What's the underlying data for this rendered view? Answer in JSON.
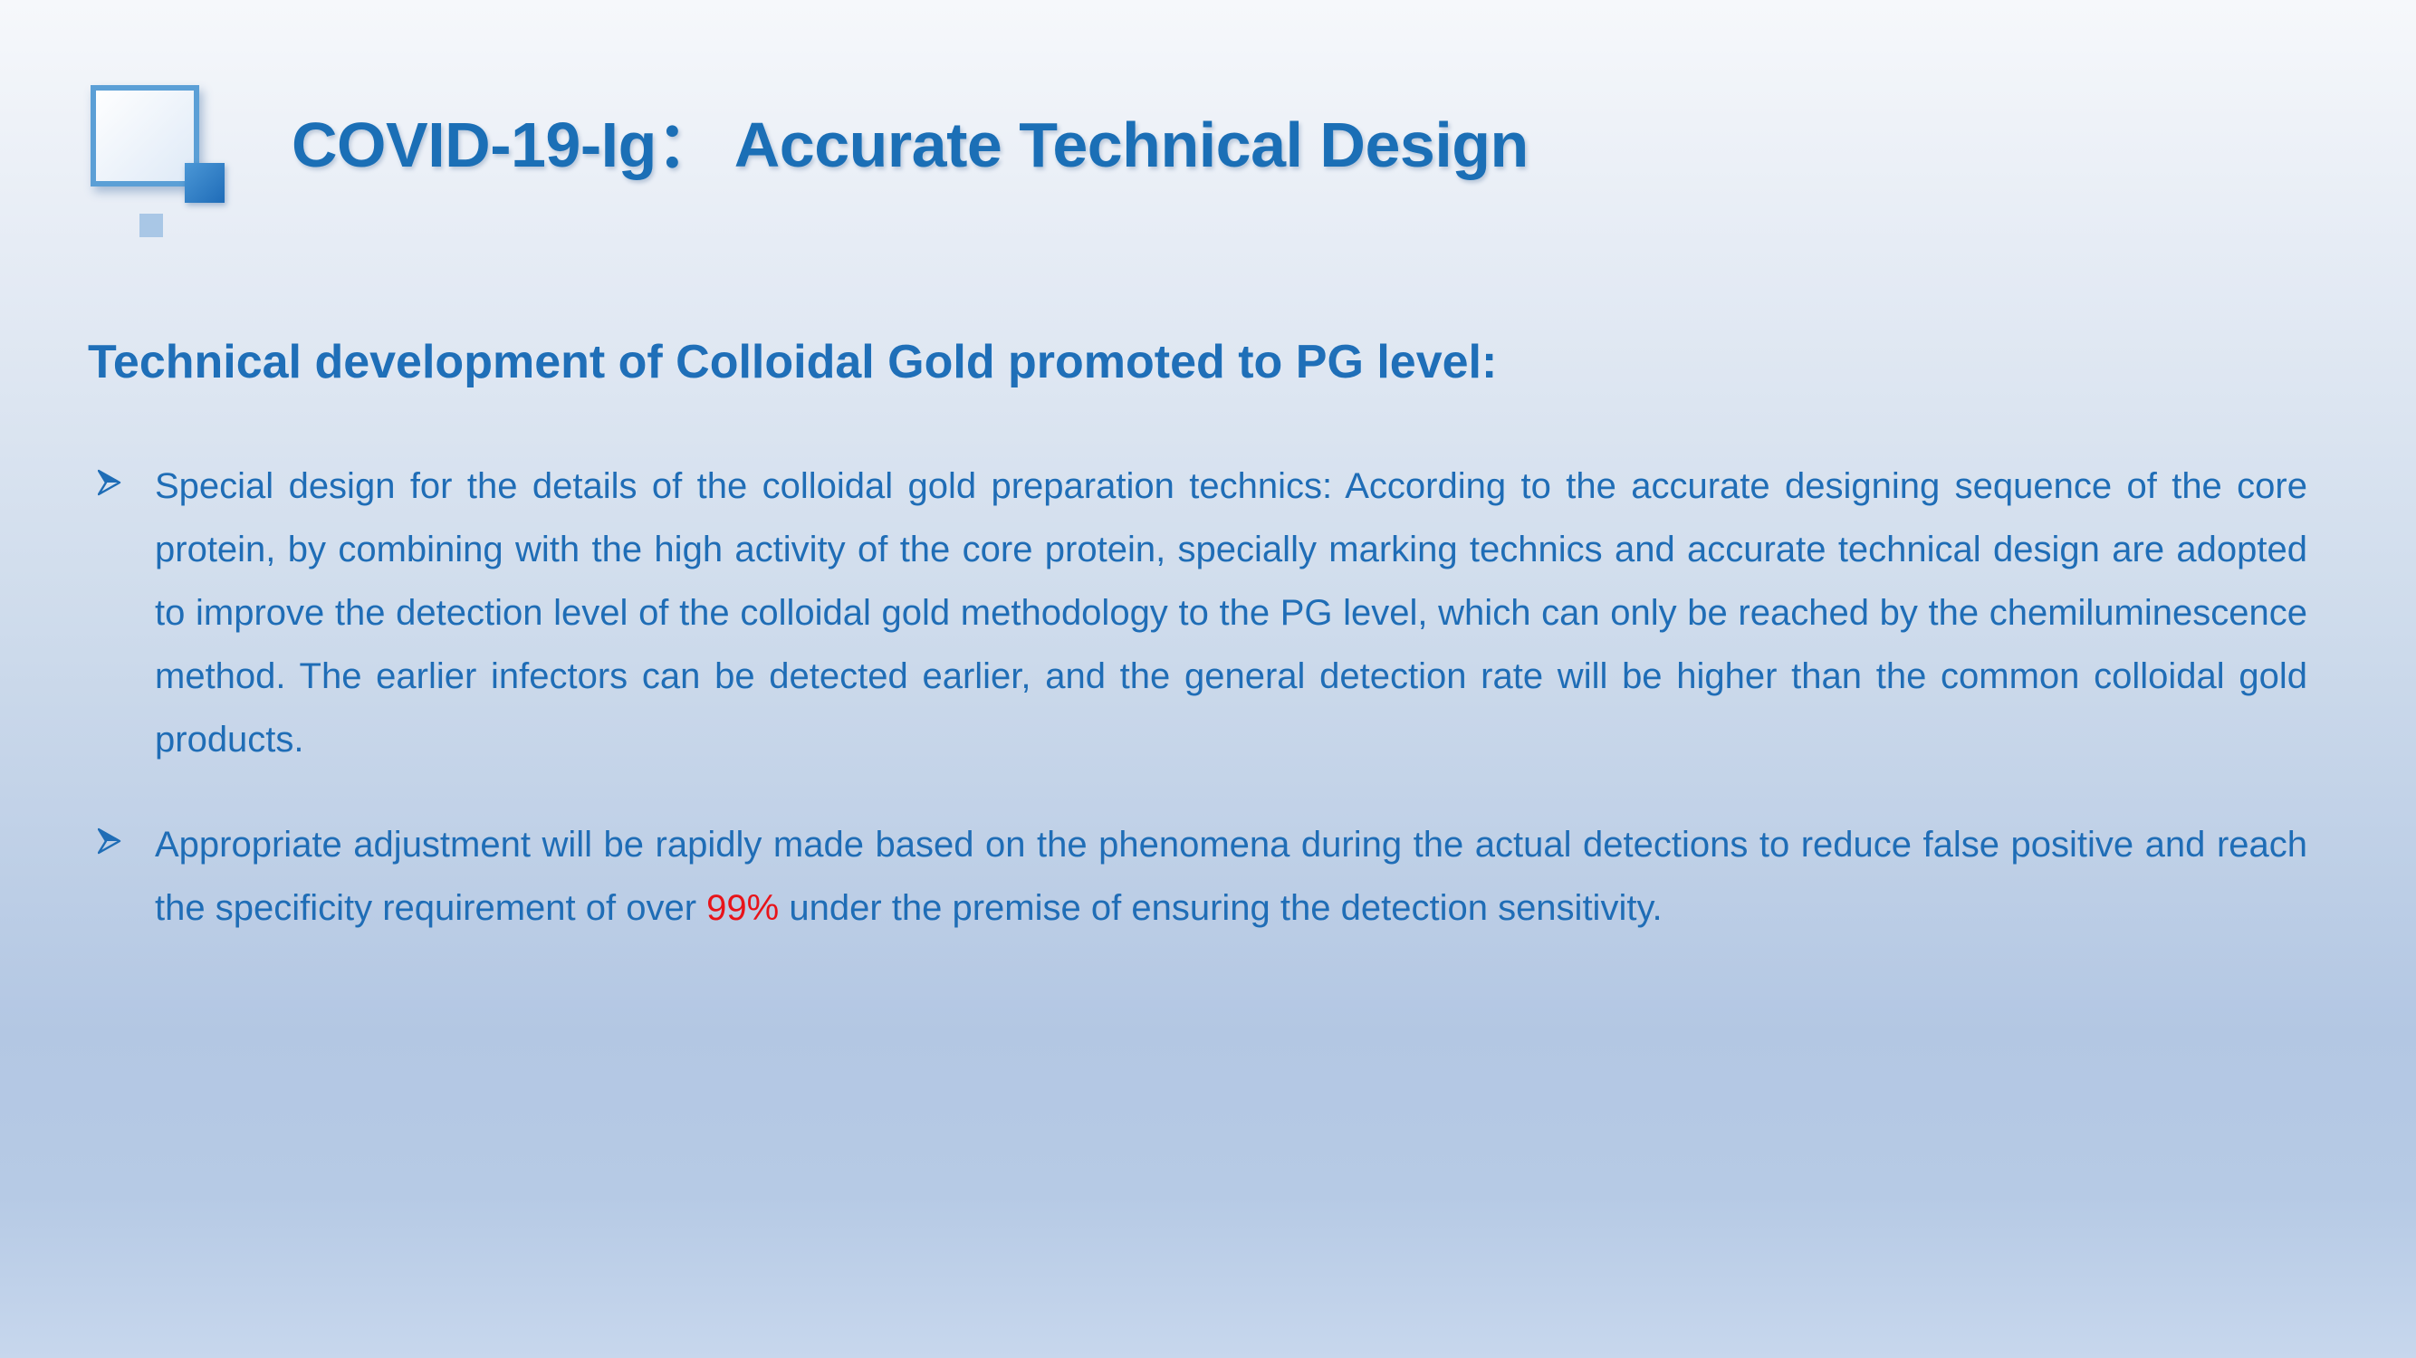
{
  "title": "COVID-19-Ig： Accurate Technical Design",
  "subtitle": "Technical development of Colloidal Gold  promoted to PG level:",
  "bullets": [
    {
      "text": "Special design for the details of the colloidal gold preparation technics: According to  the accurate designing sequence of the core protein, by combining with the high  activity of the core protein, specially marking technics and accurate technical design are adopted to improve the detection level of the colloidal gold methodology to the  PG level, which can only be reached by the chemiluminescence method. The earlier  infectors can be detected earlier, and the general detection rate will be higher than  the common colloidal gold products."
    },
    {
      "text_before": "Appropriate adjustment will be rapidly made based on the phenomena during the  actual detections to reduce false positive and reach the specificity requirement of over ",
      "highlight": "99%",
      "text_after": " under the premise of ensuring the detection sensitivity."
    }
  ],
  "icons": {
    "logo": "square-logo-icon",
    "bullet": "arrowhead-bullet-icon"
  },
  "colors": {
    "heading": "#1b6fb6",
    "body_text": "#1f6db6",
    "highlight": "#e8141a"
  }
}
